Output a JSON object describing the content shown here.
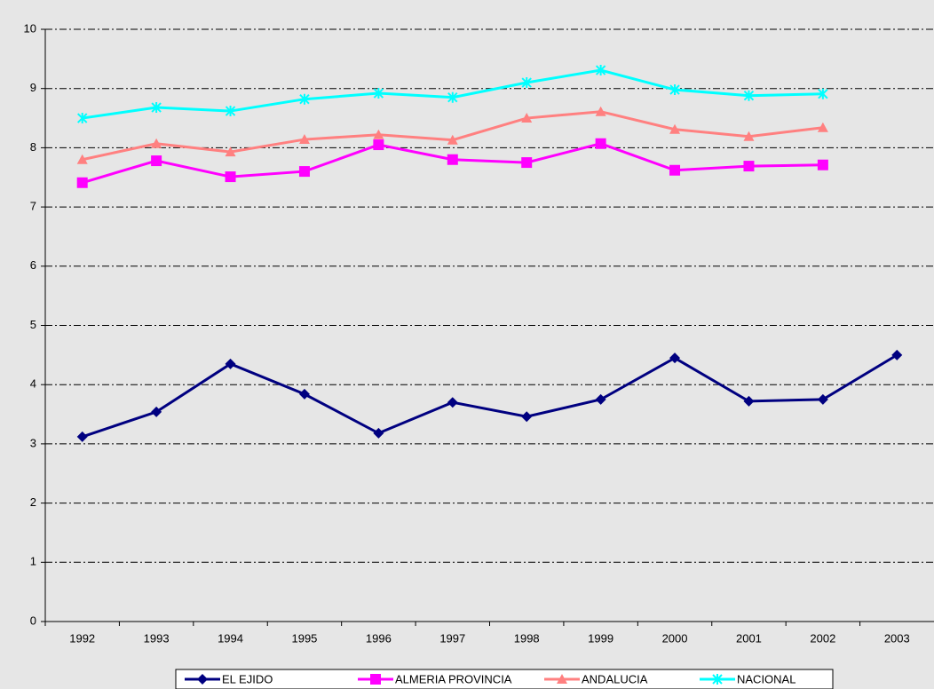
{
  "chart_data": {
    "type": "line",
    "categories": [
      "1992",
      "1993",
      "1994",
      "1995",
      "1996",
      "1997",
      "1998",
      "1999",
      "2000",
      "2001",
      "2002",
      "2003"
    ],
    "series": [
      {
        "name": "EL EJIDO",
        "color": "#000080",
        "marker": "diamond",
        "values": [
          3.12,
          3.54,
          4.35,
          3.84,
          3.18,
          3.7,
          3.46,
          3.75,
          4.45,
          3.72,
          3.75,
          4.5
        ]
      },
      {
        "name": "ALMERIA PROVINCIA",
        "color": "#ff00ff",
        "marker": "square",
        "values": [
          7.41,
          7.78,
          7.51,
          7.6,
          8.05,
          7.8,
          7.75,
          8.07,
          7.62,
          7.69,
          7.71,
          null
        ]
      },
      {
        "name": "ANDALUCIA",
        "color": "#ff8080",
        "marker": "triangle",
        "values": [
          7.8,
          8.07,
          7.93,
          8.14,
          8.22,
          8.13,
          8.5,
          8.61,
          8.31,
          8.19,
          8.34,
          null
        ]
      },
      {
        "name": "NACIONAL",
        "color": "#00ffff",
        "marker": "star",
        "values": [
          8.5,
          8.68,
          8.62,
          8.82,
          8.92,
          8.85,
          9.1,
          9.31,
          8.98,
          8.88,
          8.91,
          null
        ]
      }
    ],
    "ylim": [
      0,
      10
    ],
    "yticks": [
      0,
      1,
      2,
      3,
      4,
      5,
      6,
      7,
      8,
      9,
      10
    ],
    "grid": true,
    "legend": "bottom"
  }
}
